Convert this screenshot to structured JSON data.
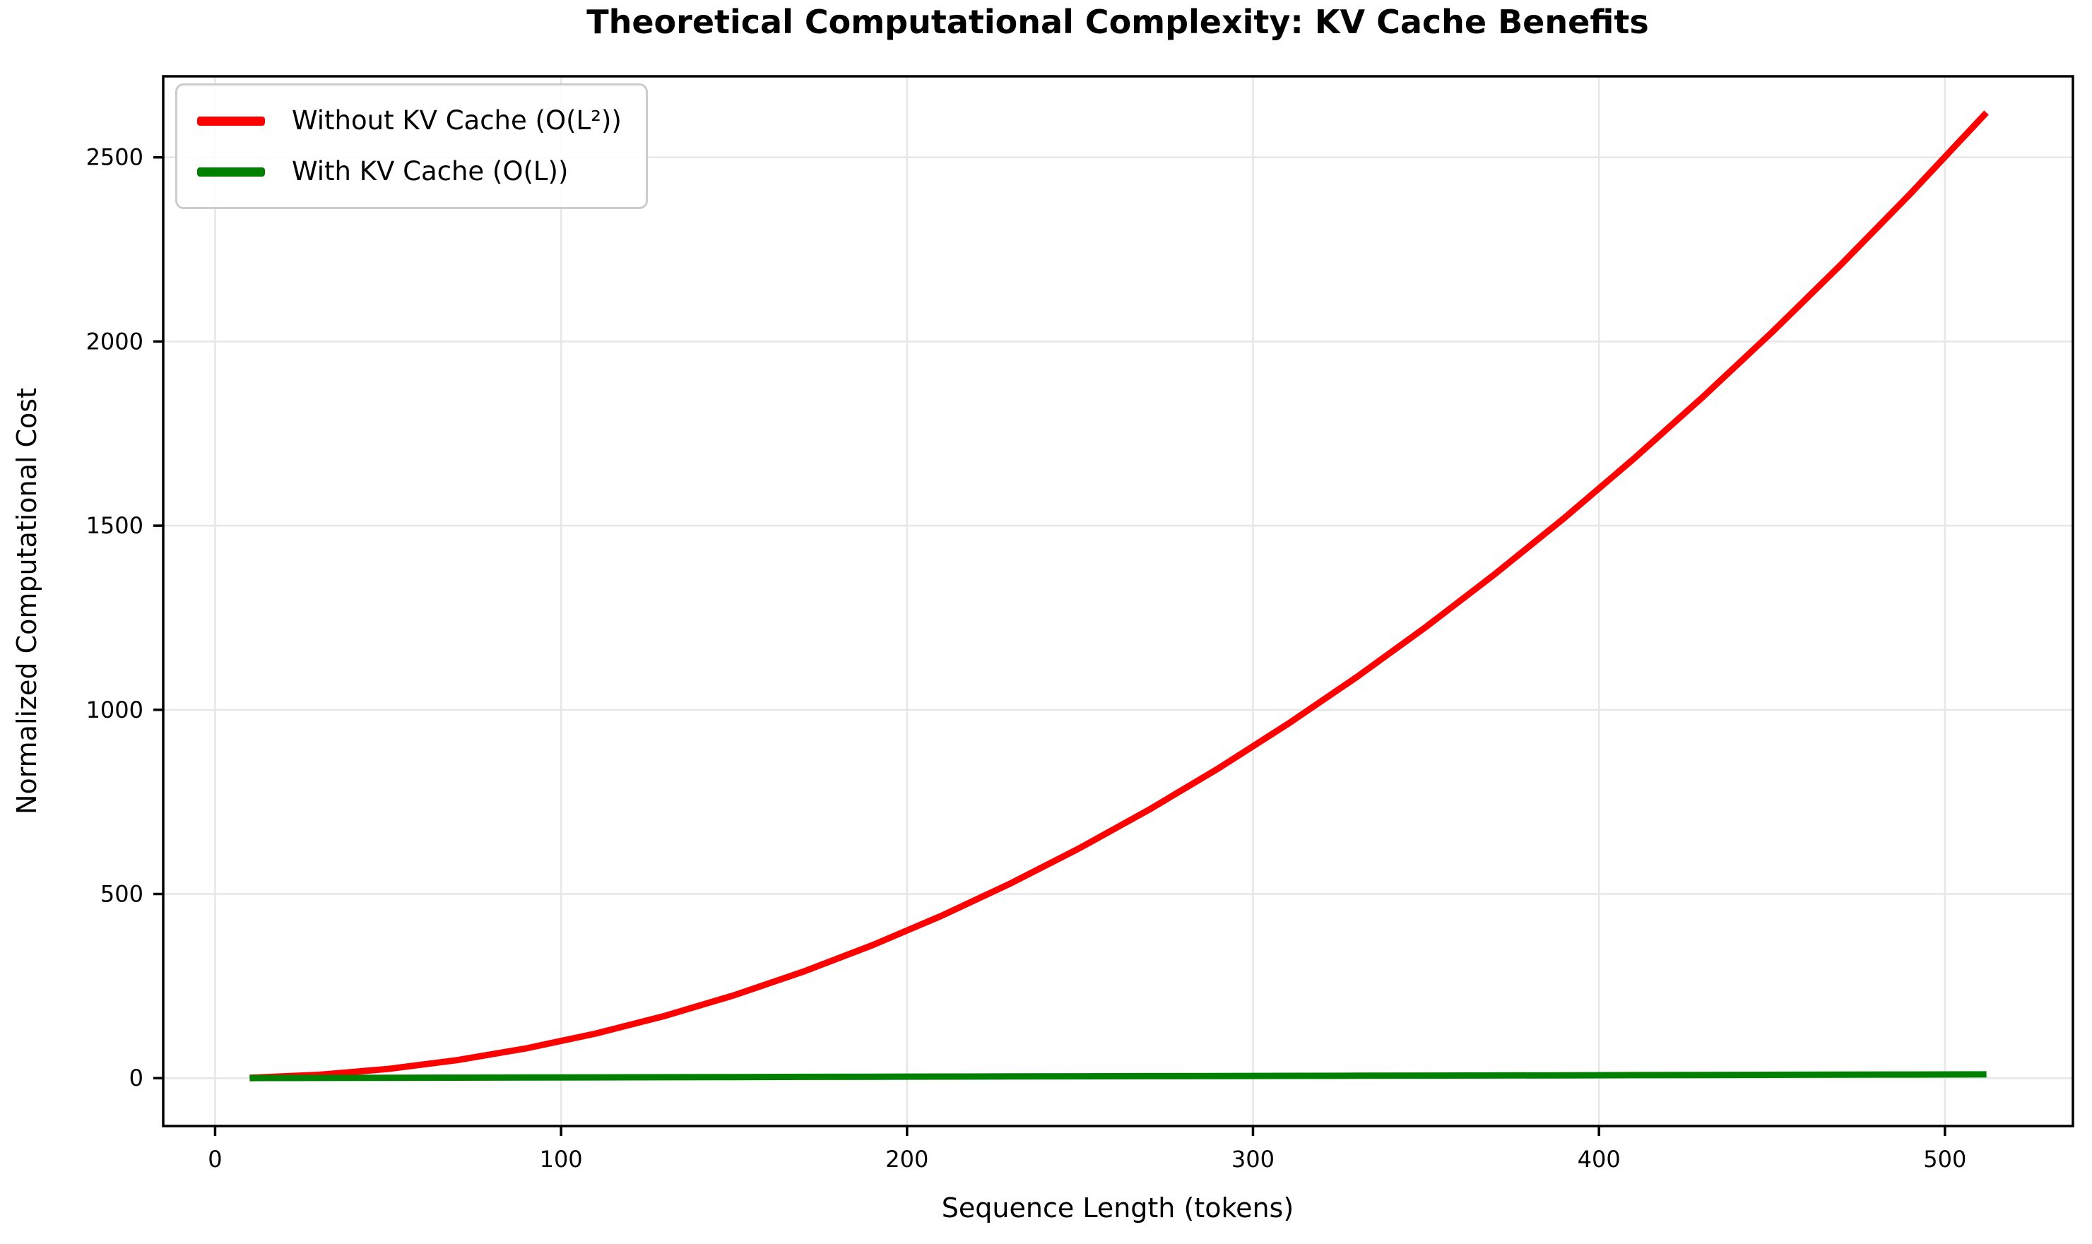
{
  "chart_data": {
    "type": "line",
    "title": "Theoretical Computational Complexity: KV Cache Benefits",
    "xlabel": "Sequence Length (tokens)",
    "ylabel": "Normalized Computational Cost",
    "xlim": [
      -15,
      537
    ],
    "ylim": [
      -130,
      2720
    ],
    "xticks": [
      0,
      100,
      200,
      300,
      400,
      500
    ],
    "yticks": [
      0,
      500,
      1000,
      1500,
      2000,
      2500
    ],
    "grid": true,
    "legend_position": "upper left",
    "x": [
      10,
      30,
      50,
      70,
      90,
      110,
      130,
      150,
      170,
      190,
      210,
      230,
      250,
      270,
      290,
      310,
      330,
      350,
      370,
      390,
      410,
      430,
      450,
      470,
      490,
      512
    ],
    "series": [
      {
        "name": "Without KV Cache (O(L²))",
        "color": "#ff0000",
        "values": [
          1,
          9,
          25,
          49,
          81,
          121,
          169,
          225,
          289,
          361,
          441,
          529,
          625,
          729,
          841,
          961,
          1089,
          1225,
          1369,
          1521,
          1681,
          1849,
          2025,
          2209,
          2401,
          2621.4
        ]
      },
      {
        "name": "With KV Cache (O(L))",
        "color": "#008000",
        "values": [
          0.2,
          0.6,
          1.0,
          1.4,
          1.8,
          2.2,
          2.6,
          3.0,
          3.4,
          3.8,
          4.2,
          4.6,
          5.0,
          5.4,
          5.8,
          6.2,
          6.6,
          7.0,
          7.4,
          7.8,
          8.2,
          8.6,
          9.0,
          9.4,
          9.8,
          10.2
        ]
      }
    ],
    "colors": {
      "grid": "#e6e6e6",
      "spine": "#000000",
      "text": "#000000",
      "background": "#ffffff"
    }
  }
}
